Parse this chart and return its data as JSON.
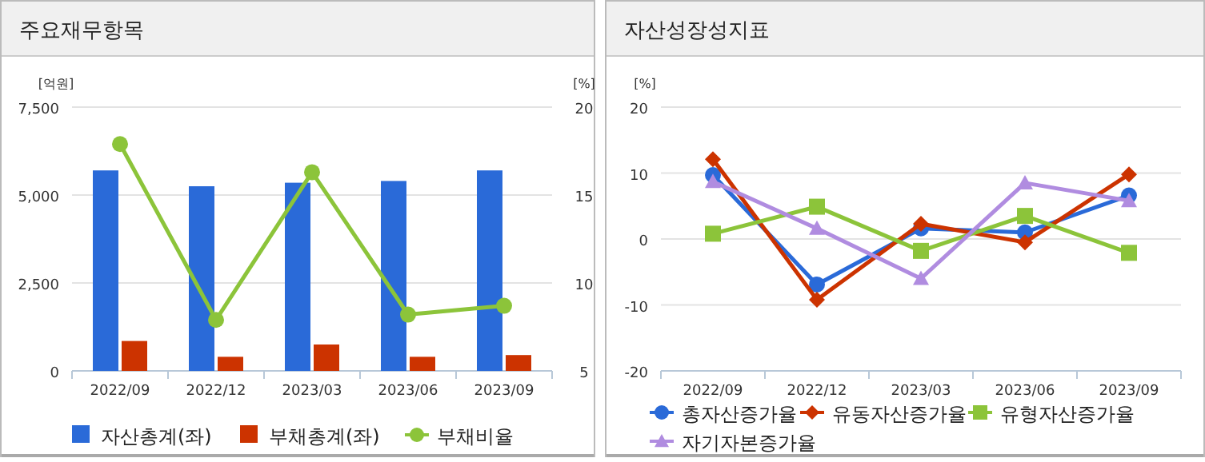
{
  "chart_data": [
    {
      "type": "bar",
      "title": "주요재무항목",
      "categories": [
        "2022/09",
        "2022/12",
        "2023/03",
        "2023/06",
        "2023/09"
      ],
      "ylabel": "[억원]",
      "y2label": "[%]",
      "ylim": [
        0,
        7500
      ],
      "yticks": [
        0,
        {
          "value": 2500,
          "label": "2,500"
        },
        {
          "value": 5000,
          "label": "5,000"
        },
        {
          "value": 7500,
          "label": "7,500"
        }
      ],
      "y2lim": [
        5,
        20
      ],
      "y2ticks": [
        5,
        10,
        15,
        20
      ],
      "grid": "y",
      "legend": "bottom",
      "series": [
        {
          "name": "자산총계(좌)",
          "color": "#2a6ad8",
          "values": [
            5700,
            5250,
            5350,
            5400,
            5700
          ]
        },
        {
          "name": "부채총계(좌)",
          "color": "#cc3300",
          "values": [
            850,
            400,
            750,
            400,
            450
          ]
        },
        {
          "name": "부채비율",
          "type": "line",
          "axis": "y2",
          "marker": "circle",
          "color": "#8cc43a",
          "values": [
            17.9,
            7.9,
            16.3,
            8.2,
            8.7
          ]
        }
      ]
    },
    {
      "type": "line",
      "title": "자산성장성지표",
      "categories": [
        "2022/09",
        "2022/12",
        "2023/03",
        "2023/06",
        "2023/09"
      ],
      "ylabel": "[%]",
      "ylim": [
        -20,
        20
      ],
      "yticks": [
        -20,
        -10,
        0,
        10,
        20
      ],
      "grid": "y",
      "legend": "bottom",
      "series": [
        {
          "name": "총자산증가율",
          "color": "#2a6ad8",
          "marker": "circle",
          "values": [
            9.7,
            -6.9,
            1.6,
            1.0,
            6.6
          ]
        },
        {
          "name": "유동자산증가율",
          "color": "#cc3300",
          "marker": "diamond",
          "values": [
            12.1,
            -9.2,
            2.3,
            -0.5,
            9.8
          ]
        },
        {
          "name": "유형자산증가율",
          "color": "#8cc43a",
          "marker": "square",
          "values": [
            0.8,
            4.9,
            -1.8,
            3.5,
            -2.1
          ]
        },
        {
          "name": "자기자본증가율",
          "color": "#b08ce0",
          "marker": "triangle",
          "values": [
            8.7,
            1.6,
            -6.0,
            8.5,
            5.8
          ]
        }
      ]
    }
  ]
}
